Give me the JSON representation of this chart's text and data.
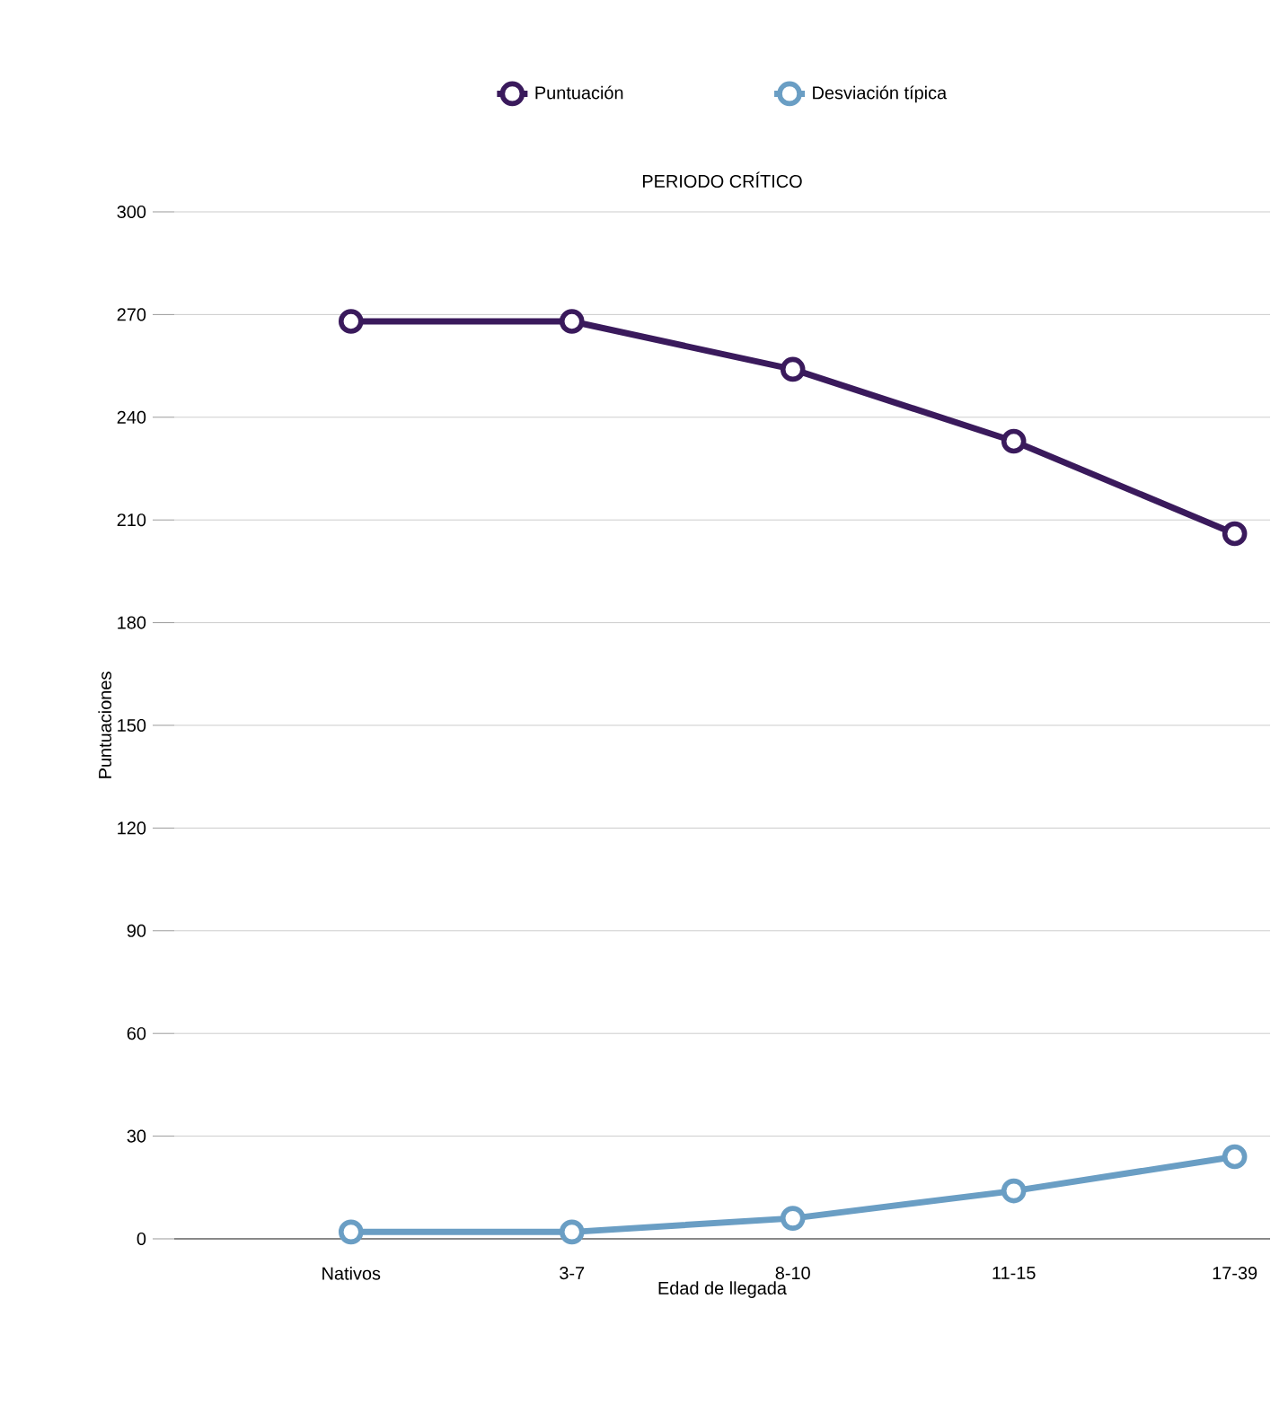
{
  "chart_data": {
    "type": "line",
    "title": "PERIODO CRÍTICO",
    "xlabel": "Edad de llegada",
    "ylabel": "Puntuaciones",
    "categories": [
      "Nativos",
      "3-7",
      "8-10",
      "11-15",
      "17-39"
    ],
    "series": [
      {
        "name": "Puntuación",
        "color": "#3a1a5c",
        "values": [
          268,
          268,
          254,
          233,
          206
        ]
      },
      {
        "name": "Desviación típica",
        "color": "#6a9ec4",
        "values": [
          2,
          2,
          6,
          14,
          24
        ]
      }
    ],
    "ylim": [
      0,
      300
    ],
    "yticks": [
      0,
      30,
      60,
      90,
      120,
      150,
      180,
      210,
      240,
      270,
      300
    ],
    "grid": "y",
    "legend": "top",
    "marker": "circle",
    "line_style": "solid"
  }
}
